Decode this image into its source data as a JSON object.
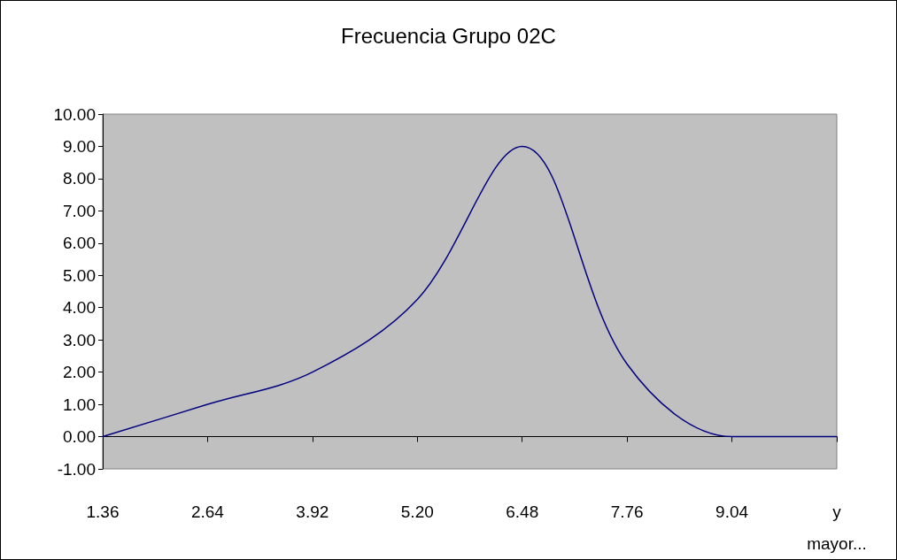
{
  "chart_data": {
    "type": "line",
    "title": "Frecuencia Grupo 02C",
    "categories": [
      "1.36",
      "2.64",
      "3.92",
      "5.20",
      "6.48",
      "7.76",
      "9.04",
      "y mayor..."
    ],
    "series": [
      {
        "color": "#000080",
        "values": [
          0,
          1.0,
          2.0,
          4.25,
          9.0,
          2.25,
          0,
          0
        ]
      }
    ],
    "ylim": [
      -1,
      10
    ],
    "yticks": [
      {
        "value": -1,
        "label": "-1.00"
      },
      {
        "value": 0,
        "label": "0.00"
      },
      {
        "value": 1,
        "label": "1.00"
      },
      {
        "value": 2,
        "label": "2.00"
      },
      {
        "value": 3,
        "label": "3.00"
      },
      {
        "value": 4,
        "label": "4.00"
      },
      {
        "value": 5,
        "label": "5.00"
      },
      {
        "value": 6,
        "label": "6.00"
      },
      {
        "value": 7,
        "label": "7.00"
      },
      {
        "value": 8,
        "label": "8.00"
      },
      {
        "value": 9,
        "label": "9.00"
      },
      {
        "value": 10,
        "label": "10.00"
      }
    ],
    "marker": "none",
    "line_style": "solid"
  }
}
